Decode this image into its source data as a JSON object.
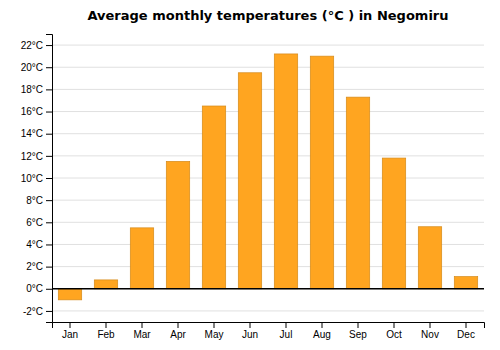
{
  "chart_data": {
    "type": "bar",
    "title": "Average monthly temperatures (°C ) in Negomiru",
    "categories": [
      "Jan",
      "Feb",
      "Mar",
      "Apr",
      "May",
      "Jun",
      "Jul",
      "Aug",
      "Sep",
      "Oct",
      "Nov",
      "Dec"
    ],
    "values": [
      -1.0,
      0.8,
      5.5,
      11.5,
      16.5,
      19.5,
      21.2,
      21.0,
      17.3,
      11.8,
      5.6,
      1.1
    ],
    "color": "#FFA520",
    "ylim": [
      -3,
      23
    ],
    "yticks": [
      {
        "value": -2,
        "label": "-2°C"
      },
      {
        "value": 0,
        "label": "0°C"
      },
      {
        "value": 2,
        "label": "2°C"
      },
      {
        "value": 4,
        "label": "4°C"
      },
      {
        "value": 6,
        "label": "6°C"
      },
      {
        "value": 8,
        "label": "8°C"
      },
      {
        "value": 10,
        "label": "10°C"
      },
      {
        "value": 12,
        "label": "12°C"
      },
      {
        "value": 14,
        "label": "14°C"
      },
      {
        "value": 16,
        "label": "16°C"
      },
      {
        "value": 18,
        "label": "18°C"
      },
      {
        "value": 20,
        "label": "20°C"
      },
      {
        "value": 22,
        "label": "22°C"
      }
    ],
    "grid": true
  }
}
